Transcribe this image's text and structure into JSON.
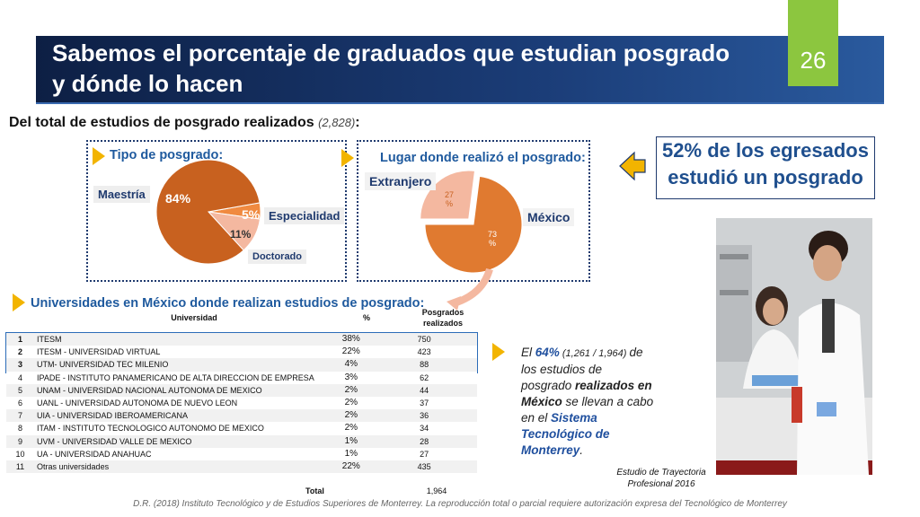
{
  "header": {
    "title": "Sabemos el porcentaje de graduados que estudian posgrado y dónde lo hacen",
    "slide_number": "26"
  },
  "subtitle": {
    "text": "Del total de estudios de posgrado realizados",
    "count": "(2,828)",
    "suffix": ":"
  },
  "panel_tipo": {
    "title": "Tipo de posgrado:"
  },
  "panel_lugar": {
    "title": "Lugar donde realizó el posgrado:"
  },
  "callout": {
    "text": "52% de los egresados estudió un posgrado"
  },
  "table_section": {
    "title": "Universidades en México donde realizan estudios de posgrado:"
  },
  "table": {
    "headers": {
      "university": "Universidad",
      "pct": "%",
      "count": "Posgrados realizados"
    },
    "rows": [
      {
        "n": "1",
        "name": "ITESM",
        "pct": "38%",
        "count": "750"
      },
      {
        "n": "2",
        "name": "ITESM - UNIVERSIDAD VIRTUAL",
        "pct": "22%",
        "count": "423"
      },
      {
        "n": "3",
        "name": "UTM- UNIVERSIDAD TEC MILENIO",
        "pct": "4%",
        "count": "88"
      },
      {
        "n": "4",
        "name": "IPADE - INSTITUTO PANAMERICANO DE ALTA DIRECCION DE EMPRESA",
        "pct": "3%",
        "count": "62"
      },
      {
        "n": "5",
        "name": "UNAM - UNIVERSIDAD NACIONAL AUTONOMA DE MEXICO",
        "pct": "2%",
        "count": "44"
      },
      {
        "n": "6",
        "name": "UANL - UNIVERSIDAD AUTONOMA DE NUEVO LEON",
        "pct": "2%",
        "count": "37"
      },
      {
        "n": "7",
        "name": "UIA - UNIVERSIDAD IBEROAMERICANA",
        "pct": "2%",
        "count": "36"
      },
      {
        "n": "8",
        "name": "ITAM - INSTITUTO TECNOLOGICO AUTONOMO DE MEXICO",
        "pct": "2%",
        "count": "34"
      },
      {
        "n": "9",
        "name": "UVM - UNIVERSIDAD VALLE DE MEXICO",
        "pct": "1%",
        "count": "28"
      },
      {
        "n": "10",
        "name": "UA - UNIVERSIDAD ANAHUAC",
        "pct": "1%",
        "count": "27"
      },
      {
        "n": "11",
        "name": "Otras universidades",
        "pct": "22%",
        "count": "435"
      }
    ],
    "total_label": "Total",
    "total_value": "1,964"
  },
  "note": {
    "p1": "El ",
    "pct": "64%",
    "frac": " (1,261 / 1,964) ",
    "p2": "de los estudios de posgrado ",
    "p3": "realizados en México",
    "p4": " se llevan a cabo en el ",
    "p5": "Sistema Tecnológico de Monterrey",
    "p6": "."
  },
  "source": {
    "line1": "Estudio de Trayectoria",
    "line2": "Profesional 2016"
  },
  "footer": "D.R. (2018) Instituto Tecnológico y de Estudios Superiores de Monterrey. La reproducción total o parcial requiere autorización expresa del Tecnológico de Monterrey",
  "chart_data": [
    {
      "type": "pie",
      "title": "Tipo de posgrado:",
      "categories": [
        "Maestría",
        "Especialidad",
        "Doctorado"
      ],
      "values": [
        84,
        5,
        11
      ],
      "value_labels": [
        "84%",
        "5%",
        "11%"
      ],
      "colors": [
        "#c8611f",
        "#f08a40",
        "#f4b8a0"
      ]
    },
    {
      "type": "pie",
      "title": "Lugar donde realizó el posgrado:",
      "categories": [
        "Extranjero",
        "México"
      ],
      "values": [
        27,
        73
      ],
      "value_labels": [
        "27 %",
        "73 %"
      ],
      "colors": [
        "#f4b8a0",
        "#e07a30"
      ]
    }
  ]
}
